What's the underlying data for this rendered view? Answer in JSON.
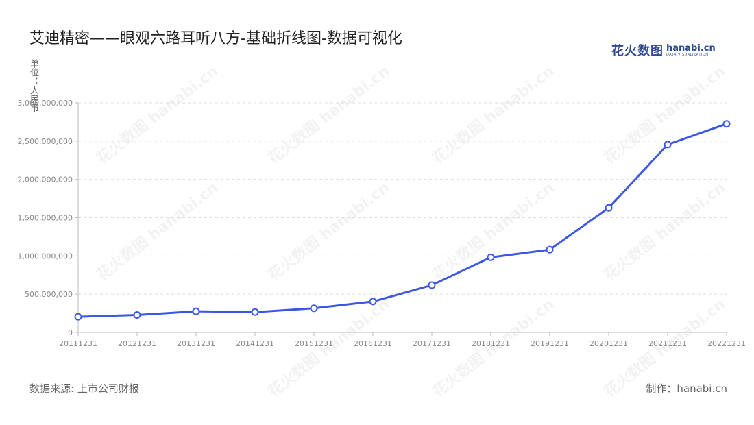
{
  "header": {
    "title": "艾迪精密——眼观六路耳听八方-基础折线图-数据可视化",
    "logo_cn": "花火数图",
    "logo_en": "hanabi.cn",
    "logo_sub": "DATA VISUALIZATION"
  },
  "footer": {
    "source": "数据来源: 上市公司财报",
    "maker": "制作：hanabi.cn"
  },
  "watermark": "花火数图 hanabi.cn",
  "colors": {
    "line": "#3b57e6",
    "grid": "#dddddd",
    "axis": "#bbbbbb",
    "marker_fill": "#ffffff"
  },
  "chart_data": {
    "type": "line",
    "title": "艾迪精密——眼观六路耳听八方-基础折线图-数据可视化",
    "ylabel": "单位：人民币",
    "xlabel": "",
    "categories": [
      "20111231",
      "20121231",
      "20131231",
      "20141231",
      "20151231",
      "20161231",
      "20171231",
      "20181231",
      "20191231",
      "20201231",
      "20211231",
      "20221231"
    ],
    "values": [
      205000000,
      228000000,
      276000000,
      266000000,
      316000000,
      404000000,
      618000000,
      982000000,
      1082000000,
      1628000000,
      2455000000,
      2725000000
    ],
    "yticks": [
      0,
      500000000,
      1000000000,
      1500000000,
      2000000000,
      2500000000,
      3000000000
    ],
    "ytick_labels": [
      "0",
      "500,000,000",
      "1,000,000,000",
      "1,500,000,000",
      "2,000,000,000",
      "2,500,000,000",
      "3,000,000,000"
    ],
    "ylim": [
      0,
      3000000000
    ],
    "grid": true,
    "legend": "none"
  }
}
